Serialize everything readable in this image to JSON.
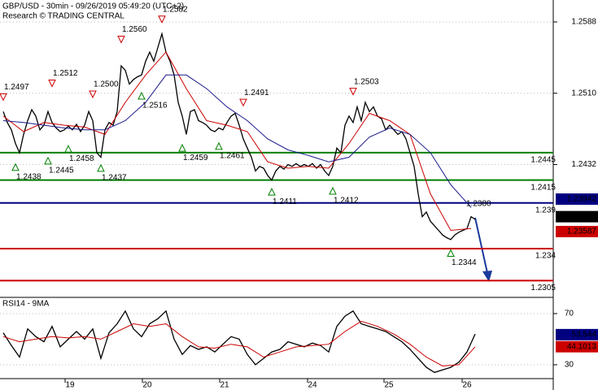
{
  "chart_data": [
    {
      "type": "line",
      "title": "GBP/USD - 30min - 09/26/2019 05:49:20 (UTC+2)",
      "subtitle": "Research © TRADING CENTRAL",
      "xlim": [
        -0.8,
        135.2
      ],
      "xticks": [
        {
          "value": 15.2,
          "label": "19"
        },
        {
          "value": 34.2,
          "label": "20"
        },
        {
          "value": 53.2,
          "label": "21"
        },
        {
          "value": 74.8,
          "label": "24"
        },
        {
          "value": 93.6,
          "label": "25"
        },
        {
          "value": 112.8,
          "label": "26"
        }
      ],
      "ylim": [
        1.22876,
        1.2612
      ],
      "yticks": [
        1.2588,
        {
          "value": 1.251,
          "label": "1.2510"
        },
        1.2432
      ],
      "grid": true,
      "series": [
        {
          "color": "#000000",
          "values": [
            1.249,
            1.2478,
            1.247,
            1.2455,
            1.2445,
            1.2465,
            1.248,
            1.2492,
            1.2485,
            1.247,
            1.2475,
            1.249,
            1.2478,
            1.2472,
            1.2468,
            1.247,
            1.2474,
            1.247,
            1.2476,
            1.2468,
            1.2475,
            1.249,
            1.248,
            1.2445,
            1.244,
            1.247,
            1.2478,
            1.2475,
            1.249,
            1.254,
            1.2535,
            1.252,
            1.2525,
            1.2528,
            1.253,
            1.2545,
            1.2555,
            1.2545,
            1.256,
            1.2575,
            1.2555,
            1.2545,
            1.253,
            1.25,
            1.2485,
            1.2465,
            1.249,
            1.2492,
            1.248,
            1.2478,
            1.2475,
            1.247,
            1.2468,
            1.2472,
            1.247,
            1.2478,
            1.2485,
            1.2488,
            1.2475,
            1.246,
            1.245,
            1.244,
            1.2425,
            1.243,
            1.2428,
            1.242,
            1.2415,
            1.2425,
            1.243,
            1.2427,
            1.2432,
            1.243,
            1.2433,
            1.243,
            1.2432,
            1.243,
            1.2433,
            1.2428,
            1.2432,
            1.2425,
            1.242,
            1.243,
            1.245,
            1.2445,
            1.2475,
            1.2485,
            1.2478,
            1.2495,
            1.248,
            1.25,
            1.249,
            1.2495,
            1.2485,
            1.2482,
            1.247,
            1.2475,
            1.247,
            1.2465,
            1.2468,
            1.246,
            1.2445,
            1.243,
            1.24,
            1.2375,
            1.238,
            1.237,
            1.2365,
            1.236,
            1.2355,
            1.2352,
            1.235,
            1.2355,
            1.2358,
            1.236,
            1.2362,
            1.2375,
            1.2372
          ]
        },
        {
          "color": "#cc0000",
          "x": [
            0,
            5,
            10,
            15,
            20,
            25,
            30,
            35,
            40,
            45,
            50,
            55,
            60,
            65,
            70,
            75,
            80,
            85,
            90,
            95,
            100,
            105,
            110,
            115
          ],
          "values": [
            1.2485,
            1.2468,
            1.2478,
            1.2475,
            1.2473,
            1.2465,
            1.25,
            1.253,
            1.2555,
            1.2515,
            1.248,
            1.2475,
            1.2468,
            1.2435,
            1.2428,
            1.243,
            1.2428,
            1.2455,
            1.2488,
            1.248,
            1.2465,
            1.24,
            1.236,
            1.2362
          ]
        },
        {
          "color": "#1a1a8c",
          "x": [
            0,
            5,
            10,
            15,
            20,
            25,
            30,
            35,
            40,
            45,
            50,
            55,
            60,
            65,
            70,
            75,
            80,
            85,
            90,
            95,
            100,
            105,
            110,
            115
          ],
          "values": [
            1.248,
            1.2478,
            1.2475,
            1.2472,
            1.247,
            1.247,
            1.248,
            1.25,
            1.253,
            1.253,
            1.2515,
            1.2495,
            1.248,
            1.246,
            1.2448,
            1.2442,
            1.2435,
            1.244,
            1.2462,
            1.2472,
            1.2465,
            1.2445,
            1.241,
            1.2385
          ]
        }
      ],
      "levels": [
        {
          "value": 1.2445,
          "color": "#008000"
        },
        {
          "value": 1.2415,
          "color": "#008000"
        },
        {
          "value": 1.239,
          "color": "#000080"
        },
        {
          "value": 1.234,
          "color": "#cc0000"
        },
        {
          "value": 1.2305,
          "color": "#cc0000"
        }
      ],
      "annotations": [
        {
          "x": 0,
          "price": 1.2497,
          "kind": "peak"
        },
        {
          "x": 12,
          "price": 1.2512,
          "kind": "peak"
        },
        {
          "x": 22,
          "price": 1.25,
          "label": "1.2500",
          "kind": "peak"
        },
        {
          "x": 29,
          "price": 1.256,
          "label": "1.2560",
          "kind": "peak"
        },
        {
          "x": 39,
          "price": 1.2582,
          "kind": "peak"
        },
        {
          "x": 59,
          "price": 1.2491,
          "kind": "peak"
        },
        {
          "x": 86,
          "price": 1.2503,
          "kind": "peak"
        },
        {
          "x": 115,
          "price": 1.238,
          "label": "1.2380",
          "kind": "text"
        },
        {
          "x": 3,
          "price": 1.2438,
          "kind": "trough"
        },
        {
          "x": 11,
          "price": 1.2445,
          "kind": "trough"
        },
        {
          "x": 16,
          "price": 1.2458,
          "kind": "trough"
        },
        {
          "x": 24,
          "price": 1.2437,
          "kind": "trough"
        },
        {
          "x": 34,
          "price": 1.2516,
          "kind": "trough"
        },
        {
          "x": 44,
          "price": 1.2459,
          "kind": "trough"
        },
        {
          "x": 53,
          "price": 1.2461,
          "kind": "trough"
        },
        {
          "x": 66,
          "price": 1.2411,
          "kind": "trough"
        },
        {
          "x": 81,
          "price": 1.2412,
          "kind": "trough"
        },
        {
          "x": 110,
          "price": 1.2344,
          "kind": "trough"
        }
      ],
      "tags": [
        {
          "value": 1.23942,
          "color": "#000080"
        },
        {
          "value": 1.2375,
          "color": "#000000"
        },
        {
          "value": 1.23587,
          "color": "#cc0000"
        }
      ]
    },
    {
      "type": "line",
      "title": "RSI14 - 9MA",
      "ylim": [
        19.8,
        81.4
      ],
      "yticks": [
        70,
        30
      ],
      "grid": true,
      "series": [
        {
          "color": "#000000",
          "x": [
            0,
            2,
            4,
            6,
            8,
            10,
            12,
            14,
            16,
            18,
            20,
            22,
            24,
            26,
            28,
            30,
            32,
            34,
            36,
            38,
            40,
            42,
            44,
            46,
            48,
            50,
            52,
            54,
            56,
            58,
            60,
            62,
            64,
            66,
            68,
            70,
            72,
            74,
            76,
            78,
            80,
            82,
            84,
            86,
            88,
            90,
            92,
            94,
            96,
            98,
            100,
            102,
            104,
            106,
            108,
            110,
            112,
            114,
            116
          ],
          "values": [
            55,
            45,
            36,
            58,
            52,
            48,
            60,
            44,
            50,
            56,
            50,
            58,
            35,
            55,
            62,
            72,
            58,
            52,
            62,
            66,
            72,
            50,
            38,
            45,
            42,
            44,
            40,
            46,
            52,
            50,
            38,
            30,
            35,
            40,
            42,
            48,
            46,
            44,
            47,
            45,
            40,
            60,
            68,
            72,
            62,
            60,
            58,
            56,
            52,
            48,
            42,
            35,
            28,
            24,
            26,
            28,
            32,
            40,
            54
          ]
        },
        {
          "color": "#cc0000",
          "x": [
            0,
            4,
            8,
            12,
            16,
            20,
            24,
            28,
            32,
            36,
            40,
            44,
            48,
            52,
            56,
            60,
            64,
            68,
            72,
            76,
            80,
            84,
            88,
            92,
            96,
            100,
            104,
            108,
            112,
            116
          ],
          "values": [
            52,
            48,
            50,
            52,
            51,
            52,
            50,
            56,
            62,
            60,
            62,
            52,
            44,
            43,
            46,
            44,
            36,
            40,
            44,
            45,
            46,
            56,
            64,
            60,
            54,
            46,
            36,
            29,
            30,
            44
          ]
        }
      ],
      "tags": [
        {
          "value": 53.544,
          "color": "#000080"
        },
        {
          "value": 44.1013,
          "color": "#cc0000"
        }
      ]
    }
  ]
}
